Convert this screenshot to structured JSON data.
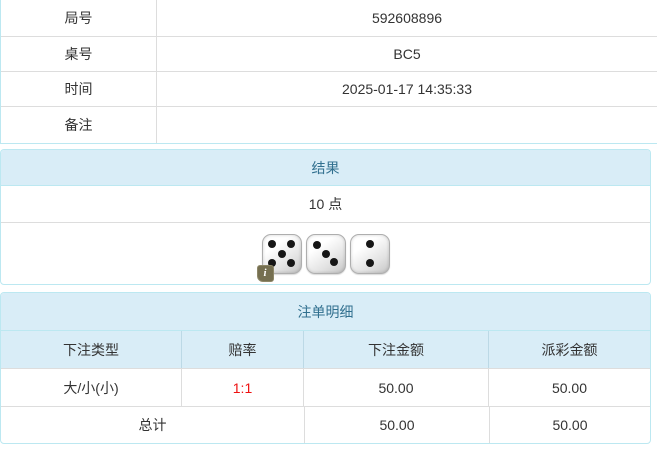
{
  "info_table": {
    "rows": [
      {
        "label": "局号",
        "value": "592608896"
      },
      {
        "label": "桌号",
        "value": "BC5"
      },
      {
        "label": "时间",
        "value": "2025-01-17 14:35:33"
      },
      {
        "label": "备注",
        "value": ""
      }
    ]
  },
  "result_panel": {
    "title": "结果",
    "points": "10 点",
    "dice": [
      5,
      3,
      2
    ],
    "info_badge_label": "i"
  },
  "bet_panel": {
    "title": "注单明细",
    "columns": [
      "下注类型",
      "赔率",
      "下注金额",
      "派彩金额"
    ],
    "rows": [
      {
        "bet_type": "大/小(小)",
        "odds": "1:1",
        "bet_amount": "50.00",
        "payout_amount": "50.00"
      }
    ],
    "total": {
      "label": "总计",
      "bet_amount": "50.00",
      "payout_amount": "50.00"
    }
  },
  "colors": {
    "panel_border": "#bce8f1",
    "heading_bg": "#d9edf7",
    "heading_text": "#31708f",
    "cell_border": "#dddddd",
    "body_text": "#333333",
    "odds_red": "#ee1111",
    "info_badge_bg": "#756f50"
  }
}
